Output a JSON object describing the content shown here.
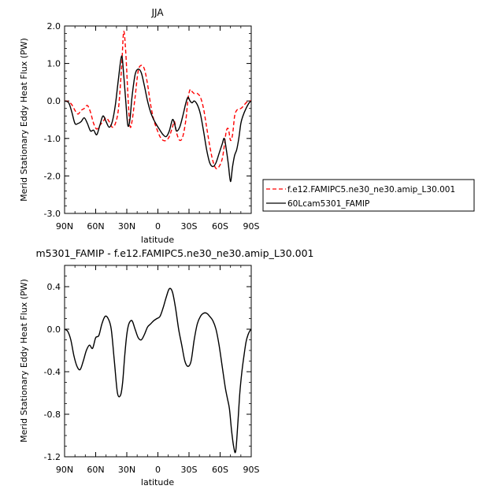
{
  "chart_data": [
    {
      "type": "line",
      "title": "JJA",
      "xlabel": "latitude",
      "ylabel": "Merid Stationary Eddy Heat Flux (PW)",
      "xlim": [
        90,
        -90
      ],
      "ylim": [
        -3.0,
        2.0
      ],
      "xticks": [
        90,
        60,
        30,
        0,
        -30,
        -60,
        -90
      ],
      "xtick_labels": [
        "90N",
        "60N",
        "30N",
        "0",
        "30S",
        "60S",
        "90S"
      ],
      "yticks": [
        -3.0,
        -2.0,
        -1.0,
        0.0,
        1.0,
        2.0
      ],
      "ytick_labels": [
        "-3.0",
        "-2.0",
        "-1.0",
        "0.0",
        "1.0",
        "2.0"
      ],
      "legend_position": "outside-right-bottom",
      "series": [
        {
          "name": "f.e12.FAMIPC5.ne30_ne30.amip_L30.001",
          "color": "#ff0000",
          "dash": "dashed",
          "x": [
            90,
            86,
            83,
            80,
            77,
            74,
            71,
            68,
            65,
            62,
            59,
            56,
            53,
            50,
            47,
            44,
            41,
            38,
            35,
            33,
            31,
            29,
            27,
            25,
            22,
            19,
            16,
            13,
            10,
            7,
            4,
            1,
            -2,
            -5,
            -8,
            -11,
            -14,
            -16,
            -18,
            -21,
            -24,
            -27,
            -29,
            -31,
            -33,
            -35,
            -38,
            -41,
            -44,
            -47,
            -50,
            -53,
            -56,
            -59,
            -62,
            -64,
            -66,
            -68,
            -70,
            -72,
            -74,
            -76,
            -78,
            -80,
            -82,
            -85,
            -88,
            -90
          ],
          "y": [
            0,
            -0.02,
            -0.1,
            -0.25,
            -0.35,
            -0.25,
            -0.2,
            -0.12,
            -0.3,
            -0.6,
            -0.75,
            -0.65,
            -0.55,
            -0.45,
            -0.55,
            -0.7,
            -0.6,
            -0.2,
            0.9,
            1.85,
            1.3,
            0.2,
            -0.65,
            -0.55,
            0.1,
            0.8,
            0.95,
            0.85,
            0.45,
            -0.1,
            -0.5,
            -0.75,
            -0.95,
            -1.05,
            -1.05,
            -0.95,
            -0.7,
            -0.55,
            -0.85,
            -1.05,
            -0.95,
            -0.5,
            0.05,
            0.3,
            0.25,
            0.2,
            0.2,
            0.1,
            -0.2,
            -0.7,
            -1.2,
            -1.6,
            -1.8,
            -1.75,
            -1.55,
            -1.2,
            -0.8,
            -0.75,
            -1.05,
            -0.9,
            -0.4,
            -0.25,
            -0.22,
            -0.2,
            -0.15,
            -0.05,
            0,
            0
          ]
        },
        {
          "name": "60Lcam5301_FAMIP",
          "color": "#000000",
          "dash": "solid",
          "x": [
            90,
            86,
            83,
            80,
            77,
            74,
            71,
            68,
            65,
            62,
            59,
            56,
            53,
            50,
            47,
            44,
            41,
            38,
            35,
            33,
            31,
            29,
            27,
            25,
            22,
            19,
            16,
            13,
            10,
            7,
            4,
            1,
            -2,
            -5,
            -8,
            -11,
            -14,
            -16,
            -18,
            -21,
            -24,
            -27,
            -29,
            -31,
            -33,
            -35,
            -38,
            -41,
            -44,
            -47,
            -50,
            -53,
            -56,
            -59,
            -62,
            -64,
            -66,
            -68,
            -70,
            -72,
            -74,
            -76,
            -78,
            -80,
            -82,
            -85,
            -88,
            -90
          ],
          "y": [
            0,
            -0.05,
            -0.3,
            -0.6,
            -0.6,
            -0.55,
            -0.45,
            -0.6,
            -0.8,
            -0.78,
            -0.9,
            -0.65,
            -0.4,
            -0.55,
            -0.7,
            -0.55,
            -0.1,
            0.6,
            1.2,
            0.7,
            0.0,
            -0.65,
            -0.5,
            0.1,
            0.7,
            0.85,
            0.75,
            0.4,
            0.0,
            -0.3,
            -0.5,
            -0.65,
            -0.78,
            -0.9,
            -0.95,
            -0.8,
            -0.5,
            -0.6,
            -0.8,
            -0.7,
            -0.4,
            -0.05,
            0.1,
            0.0,
            -0.05,
            0.0,
            -0.1,
            -0.35,
            -0.8,
            -1.3,
            -1.65,
            -1.75,
            -1.65,
            -1.4,
            -1.15,
            -1.0,
            -1.3,
            -1.7,
            -2.15,
            -1.75,
            -1.45,
            -1.3,
            -1.0,
            -0.6,
            -0.4,
            -0.2,
            -0.05,
            0
          ]
        }
      ]
    },
    {
      "type": "line",
      "title": "m5301_FAMIP - f.e12.FAMIPC5.ne30_ne30.amip_L30.001",
      "xlabel": "latitude",
      "ylabel": "Merid Stationary Eddy Heat Flux (PW)",
      "xlim": [
        90,
        -90
      ],
      "ylim": [
        -1.2,
        0.6
      ],
      "xticks": [
        90,
        60,
        30,
        0,
        -30,
        -60,
        -90
      ],
      "xtick_labels": [
        "90N",
        "60N",
        "30N",
        "0",
        "30S",
        "60S",
        "90S"
      ],
      "yticks": [
        -1.2,
        -0.8,
        -0.4,
        0.0,
        0.4
      ],
      "ytick_labels": [
        "-1.2",
        "-0.8",
        "-0.4",
        "0.0",
        "0.4"
      ],
      "series": [
        {
          "color": "#000000",
          "dash": "solid",
          "x": [
            90,
            87,
            84,
            81,
            78,
            75,
            72,
            69,
            66,
            63,
            60,
            57,
            54,
            51,
            48,
            45,
            42,
            39,
            36,
            34,
            32,
            30,
            28,
            25,
            22,
            19,
            16,
            13,
            10,
            7,
            4,
            1,
            -2,
            -5,
            -8,
            -11,
            -14,
            -17,
            -20,
            -23,
            -26,
            -29,
            -32,
            -35,
            -38,
            -41,
            -44,
            -47,
            -50,
            -53,
            -56,
            -59,
            -62,
            -65,
            -67,
            -69,
            -71,
            -73,
            -75,
            -77,
            -79,
            -81,
            -83,
            -85,
            -87,
            -89,
            -90
          ],
          "y": [
            0,
            -0.02,
            -0.1,
            -0.25,
            -0.35,
            -0.38,
            -0.3,
            -0.2,
            -0.15,
            -0.18,
            -0.08,
            -0.06,
            0.05,
            0.12,
            0.1,
            0.0,
            -0.3,
            -0.6,
            -0.62,
            -0.5,
            -0.25,
            -0.05,
            0.05,
            0.08,
            0.0,
            -0.08,
            -0.1,
            -0.05,
            0.02,
            0.05,
            0.08,
            0.1,
            0.12,
            0.2,
            0.3,
            0.38,
            0.35,
            0.2,
            0.0,
            -0.15,
            -0.3,
            -0.35,
            -0.3,
            -0.1,
            0.05,
            0.12,
            0.15,
            0.15,
            0.12,
            0.08,
            0.0,
            -0.15,
            -0.35,
            -0.55,
            -0.65,
            -0.75,
            -0.95,
            -1.1,
            -1.15,
            -0.9,
            -0.6,
            -0.4,
            -0.25,
            -0.12,
            -0.05,
            -0.01,
            0
          ]
        }
      ]
    }
  ]
}
